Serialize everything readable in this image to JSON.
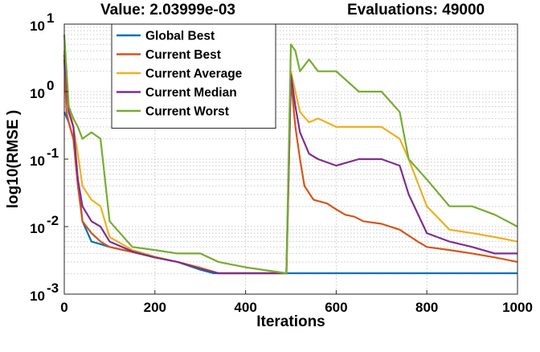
{
  "title": {
    "value_text": "Value: 2.03999e-03",
    "evaluations_text": "Evaluations: 49000"
  },
  "chart_data": {
    "type": "line",
    "xlabel": "Iterations",
    "ylabel": "log10(RMSE )",
    "xlim": [
      0,
      1000
    ],
    "ylim": [
      0.001,
      10
    ],
    "yscale": "log",
    "grid": true,
    "legend_position": "top-left",
    "x_ticks": [
      0,
      200,
      400,
      600,
      800,
      1000
    ],
    "x_tick_labels": [
      "0",
      "200",
      "400",
      "600",
      "800",
      "1000"
    ],
    "y_ticks": [
      0.001,
      0.01,
      0.1,
      1,
      10
    ],
    "y_tick_labels": [
      {
        "base": "10",
        "exp": "-3"
      },
      {
        "base": "10",
        "exp": "-2"
      },
      {
        "base": "10",
        "exp": "-1"
      },
      {
        "base": "10",
        "exp": "0"
      },
      {
        "base": "10",
        "exp": "1"
      }
    ],
    "series": [
      {
        "name": "Global Best",
        "color": "#0072BD",
        "x": [
          0,
          10,
          20,
          40,
          60,
          80,
          100,
          150,
          200,
          250,
          300,
          330,
          490,
          500,
          510,
          520,
          540,
          560,
          580,
          600,
          620,
          640,
          660,
          700,
          720,
          760,
          800,
          850,
          900,
          950,
          1000
        ],
        "y": [
          0.5,
          0.35,
          0.2,
          0.012,
          0.006,
          0.0055,
          0.005,
          0.0042,
          0.0035,
          0.003,
          0.0023,
          0.00204,
          0.00204,
          0.00204,
          0.00204,
          0.00204,
          0.00204,
          0.00204,
          0.00204,
          0.00204,
          0.00204,
          0.00204,
          0.00204,
          0.00204,
          0.00204,
          0.00204,
          0.00204,
          0.00204,
          0.00204,
          0.00204,
          0.00204
        ]
      },
      {
        "name": "Current Best",
        "color": "#D95319",
        "x": [
          0,
          5,
          10,
          20,
          30,
          40,
          60,
          80,
          100,
          150,
          200,
          250,
          300,
          340,
          400,
          490,
          500,
          510,
          520,
          530,
          550,
          580,
          600,
          620,
          640,
          660,
          700,
          740,
          780,
          800,
          850,
          900,
          950,
          1000
        ],
        "y": [
          3.0,
          0.5,
          0.35,
          0.2,
          0.04,
          0.012,
          0.008,
          0.006,
          0.005,
          0.0042,
          0.0035,
          0.003,
          0.0024,
          0.00204,
          0.00204,
          0.00204,
          1.5,
          0.3,
          0.1,
          0.04,
          0.025,
          0.022,
          0.018,
          0.015,
          0.014,
          0.012,
          0.011,
          0.009,
          0.006,
          0.005,
          0.0045,
          0.004,
          0.0035,
          0.003
        ]
      },
      {
        "name": "Current Average",
        "color": "#EDB120",
        "x": [
          0,
          10,
          20,
          30,
          40,
          60,
          80,
          100,
          150,
          200,
          250,
          300,
          340,
          400,
          490,
          500,
          510,
          520,
          540,
          560,
          600,
          650,
          700,
          740,
          760,
          800,
          850,
          900,
          950,
          1000
        ],
        "y": [
          4.0,
          0.6,
          0.3,
          0.12,
          0.04,
          0.025,
          0.02,
          0.007,
          0.0045,
          0.0036,
          0.003,
          0.0025,
          0.00204,
          0.00204,
          0.00204,
          2.0,
          1.0,
          0.5,
          0.35,
          0.4,
          0.3,
          0.3,
          0.3,
          0.2,
          0.1,
          0.02,
          0.009,
          0.008,
          0.007,
          0.006
        ]
      },
      {
        "name": "Current Median",
        "color": "#7E2F8E",
        "x": [
          0,
          10,
          20,
          30,
          40,
          60,
          80,
          100,
          150,
          200,
          250,
          300,
          340,
          400,
          490,
          500,
          510,
          520,
          540,
          560,
          600,
          650,
          700,
          740,
          760,
          800,
          850,
          900,
          950,
          1000
        ],
        "y": [
          3.5,
          0.5,
          0.3,
          0.05,
          0.02,
          0.012,
          0.01,
          0.006,
          0.0043,
          0.0035,
          0.003,
          0.0024,
          0.00204,
          0.00204,
          0.00204,
          1.8,
          0.6,
          0.25,
          0.12,
          0.1,
          0.08,
          0.1,
          0.1,
          0.08,
          0.03,
          0.008,
          0.006,
          0.005,
          0.004,
          0.004
        ]
      },
      {
        "name": "Current Worst",
        "color": "#77AC30",
        "x": [
          0,
          10,
          20,
          30,
          40,
          60,
          80,
          100,
          150,
          200,
          250,
          300,
          340,
          400,
          490,
          500,
          510,
          520,
          540,
          560,
          600,
          650,
          700,
          740,
          760,
          800,
          850,
          900,
          950,
          1000
        ],
        "y": [
          7.0,
          0.6,
          0.4,
          0.3,
          0.2,
          0.25,
          0.2,
          0.012,
          0.005,
          0.0045,
          0.004,
          0.004,
          0.003,
          0.0025,
          0.00204,
          5.0,
          4.0,
          2.0,
          3.0,
          2.0,
          2.0,
          1.0,
          1.0,
          0.5,
          0.1,
          0.05,
          0.02,
          0.02,
          0.015,
          0.01
        ]
      }
    ]
  }
}
